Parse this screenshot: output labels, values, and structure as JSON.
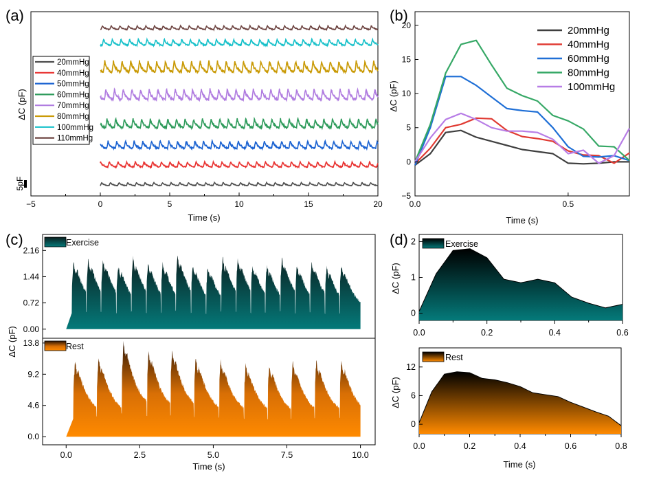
{
  "panels": {
    "a": {
      "label": "(a)"
    },
    "b": {
      "label": "(b)"
    },
    "c": {
      "label": "(c)"
    },
    "d": {
      "label": "(d)"
    }
  },
  "chart_data": [
    {
      "id": "a",
      "type": "line",
      "xlabel": "Time (s)",
      "ylabel": "ΔC (pF)",
      "xlim": [
        -5,
        20
      ],
      "xticks": [
        "−5",
        "0",
        "5",
        "10",
        "15",
        "20"
      ],
      "xtick_values": [
        -5,
        0,
        5,
        10,
        15,
        20
      ],
      "scale_bar_label": "5pF",
      "scale_bar_pF": 5,
      "legend_position": "top-left",
      "stacked_offset": true,
      "series": [
        {
          "name": "20mmHg",
          "color": "#4d4d4d",
          "pulse_rate_hz": 1.6,
          "amplitude_pF": 2.0
        },
        {
          "name": "40mmHg",
          "color": "#e8312f",
          "pulse_rate_hz": 1.6,
          "amplitude_pF": 3.5
        },
        {
          "name": "50mmHg",
          "color": "#1a62d1",
          "pulse_rate_hz": 1.6,
          "amplitude_pF": 5.0
        },
        {
          "name": "60mmHg",
          "color": "#2e9b5b",
          "pulse_rate_hz": 1.6,
          "amplitude_pF": 6.0
        },
        {
          "name": "70mmHg",
          "color": "#b07ce0",
          "pulse_rate_hz": 1.6,
          "amplitude_pF": 7.0
        },
        {
          "name": "80mmHg",
          "color": "#c99a06",
          "pulse_rate_hz": 1.6,
          "amplitude_pF": 7.5
        },
        {
          "name": "100mmHg",
          "color": "#16c0c9",
          "pulse_rate_hz": 1.6,
          "amplitude_pF": 4.0
        },
        {
          "name": "110mmHg",
          "color": "#6e4542",
          "pulse_rate_hz": 1.6,
          "amplitude_pF": 2.5
        }
      ]
    },
    {
      "id": "b",
      "type": "line",
      "xlabel": "Time (s)",
      "ylabel": "ΔC (pF)",
      "xlim": [
        0,
        0.7
      ],
      "ylim": [
        -5,
        22
      ],
      "xticks": [
        "0.0",
        "0.5"
      ],
      "xtick_values": [
        0,
        0.5
      ],
      "yticks": [
        "−5",
        "0",
        "5",
        "10",
        "15",
        "20"
      ],
      "ytick_values": [
        -5,
        0,
        5,
        10,
        15,
        20
      ],
      "legend_position": "top-right",
      "x": [
        0,
        0.05,
        0.1,
        0.15,
        0.2,
        0.25,
        0.3,
        0.35,
        0.4,
        0.45,
        0.5,
        0.55,
        0.6,
        0.65,
        0.7
      ],
      "series": [
        {
          "name": "20mmHg",
          "color": "#3f3f3f",
          "values": [
            -0.5,
            1.2,
            4.3,
            4.6,
            3.6,
            3.0,
            2.4,
            1.8,
            1.5,
            1.2,
            -0.2,
            -0.3,
            -0.2,
            0.0,
            0.0
          ]
        },
        {
          "name": "40mmHg",
          "color": "#e03a32",
          "values": [
            -0.3,
            2.0,
            5.0,
            5.5,
            6.4,
            6.3,
            4.6,
            3.7,
            3.4,
            3.0,
            1.6,
            1.0,
            0.9,
            -0.2,
            1.3
          ]
        },
        {
          "name": "60mmHg",
          "color": "#1f6fd6",
          "values": [
            -0.5,
            5.0,
            12.5,
            12.5,
            11.2,
            9.5,
            7.8,
            7.5,
            7.3,
            5.0,
            2.2,
            0.8,
            0.7,
            0.9,
            0.2
          ]
        },
        {
          "name": "80mmHg",
          "color": "#36a866",
          "values": [
            0.0,
            5.5,
            13.0,
            17.2,
            17.8,
            14.2,
            10.8,
            9.7,
            8.9,
            6.8,
            6.0,
            4.8,
            2.3,
            2.2,
            0.2
          ]
        },
        {
          "name": "100mmHg",
          "color": "#b77de6",
          "values": [
            0.0,
            3.5,
            6.2,
            7.1,
            6.2,
            5.0,
            4.5,
            4.5,
            4.3,
            3.3,
            1.2,
            1.7,
            -0.2,
            0.9,
            4.9
          ]
        }
      ]
    },
    {
      "id": "c",
      "type": "area",
      "xlabel": "Time (s)",
      "ylabel": "ΔC (pF)",
      "xlim": [
        -0.8,
        10.5
      ],
      "xticks": [
        "0.0",
        "2.5",
        "5.0",
        "7.5",
        "10.0"
      ],
      "xtick_values": [
        0,
        2.5,
        5,
        7.5,
        10
      ],
      "subplots": [
        {
          "name": "Exercise",
          "color_top": "#0b1f1f",
          "color_bottom": "#047a7a",
          "ylim": [
            -0.25,
            2.6
          ],
          "yticks": [
            "0.00",
            "0.72",
            "1.44",
            "2.16"
          ],
          "ytick_values": [
            0,
            0.72,
            1.44,
            2.16
          ],
          "beat_times": [
            0.2,
            0.7,
            1.2,
            1.72,
            2.22,
            2.73,
            3.23,
            3.73,
            4.25,
            4.76,
            5.27,
            5.78,
            6.28,
            6.77,
            7.28,
            7.79,
            8.29,
            8.8,
            9.3
          ],
          "beat_peaks": [
            1.85,
            1.9,
            1.9,
            1.75,
            1.95,
            1.8,
            1.8,
            2.0,
            1.75,
            1.7,
            1.95,
            1.95,
            1.75,
            1.75,
            1.95,
            1.75,
            1.85,
            1.7,
            1.75
          ]
        },
        {
          "name": "Rest",
          "color_top": "#2a1405",
          "color_bottom": "#ff8a00",
          "ylim": [
            -1.2,
            14.5
          ],
          "yticks": [
            "0.0",
            "4.6",
            "9.2",
            "13.8"
          ],
          "ytick_values": [
            0,
            4.6,
            9.2,
            13.8
          ],
          "beat_times": [
            0.25,
            1.05,
            1.9,
            2.75,
            3.55,
            4.35,
            5.2,
            6.05,
            6.85,
            7.65,
            8.45,
            9.3
          ],
          "beat_peaks": [
            11.0,
            11.5,
            13.9,
            12.5,
            12.6,
            11.6,
            11.2,
            10.6,
            10.4,
            10.9,
            11.1,
            11.1
          ]
        }
      ]
    },
    {
      "id": "d",
      "type": "area",
      "xlabel": "Time (s)",
      "ylabel": "ΔC (pF)",
      "subplots": [
        {
          "name": "Exercise",
          "color_top": "#000000",
          "color_bottom": "#047a7a",
          "xlim": [
            0,
            0.6
          ],
          "ylim": [
            -0.2,
            2.2
          ],
          "xticks": [
            "0.0",
            "0.2",
            "0.4",
            "0.6"
          ],
          "xtick_values": [
            0,
            0.2,
            0.4,
            0.6
          ],
          "yticks": [
            "0",
            "1",
            "2"
          ],
          "ytick_values": [
            0,
            1,
            2
          ],
          "x": [
            0,
            0.05,
            0.1,
            0.15,
            0.2,
            0.25,
            0.3,
            0.35,
            0.4,
            0.45,
            0.5,
            0.55,
            0.6
          ],
          "values": [
            0.05,
            1.1,
            1.75,
            1.8,
            1.55,
            0.95,
            0.85,
            0.95,
            0.85,
            0.45,
            0.28,
            0.15,
            0.25
          ]
        },
        {
          "name": "Rest",
          "color_top": "#000000",
          "color_bottom": "#ff8a00",
          "xlim": [
            0,
            0.8
          ],
          "ylim": [
            -2,
            16
          ],
          "xticks": [
            "0.0",
            "0.2",
            "0.4",
            "0.6",
            "0.8"
          ],
          "xtick_values": [
            0,
            0.2,
            0.4,
            0.6,
            0.8
          ],
          "yticks": [
            "0",
            "6",
            "12"
          ],
          "ytick_values": [
            0,
            6,
            12
          ],
          "x": [
            0,
            0.05,
            0.1,
            0.15,
            0.2,
            0.25,
            0.3,
            0.35,
            0.4,
            0.45,
            0.5,
            0.55,
            0.6,
            0.65,
            0.7,
            0.75,
            0.8
          ],
          "values": [
            0.3,
            6.8,
            10.5,
            11.0,
            10.8,
            9.6,
            9.3,
            8.7,
            7.9,
            6.6,
            6.2,
            5.8,
            4.6,
            3.6,
            2.6,
            1.7,
            -0.3
          ]
        }
      ]
    }
  ]
}
